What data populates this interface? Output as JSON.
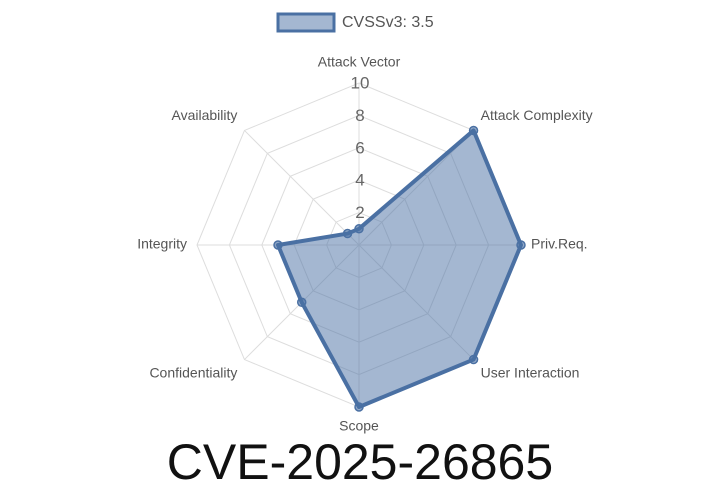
{
  "chart_data": {
    "type": "radar",
    "title": "CVE-2025-26865",
    "categories": [
      "Attack Vector",
      "Attack Complexity",
      "Priv.Req.",
      "User Interaction",
      "Scope",
      "Confidentiality",
      "Integrity",
      "Availability"
    ],
    "series": [
      {
        "name": "CVSSv3: 3.5",
        "color": "#4a70a3",
        "values": [
          1,
          10,
          10,
          10,
          10,
          5,
          5,
          1
        ]
      }
    ],
    "ylim": [
      0,
      10
    ],
    "yticks": [
      2,
      4,
      6,
      8,
      10
    ],
    "grid": true,
    "legend": "top"
  }
}
